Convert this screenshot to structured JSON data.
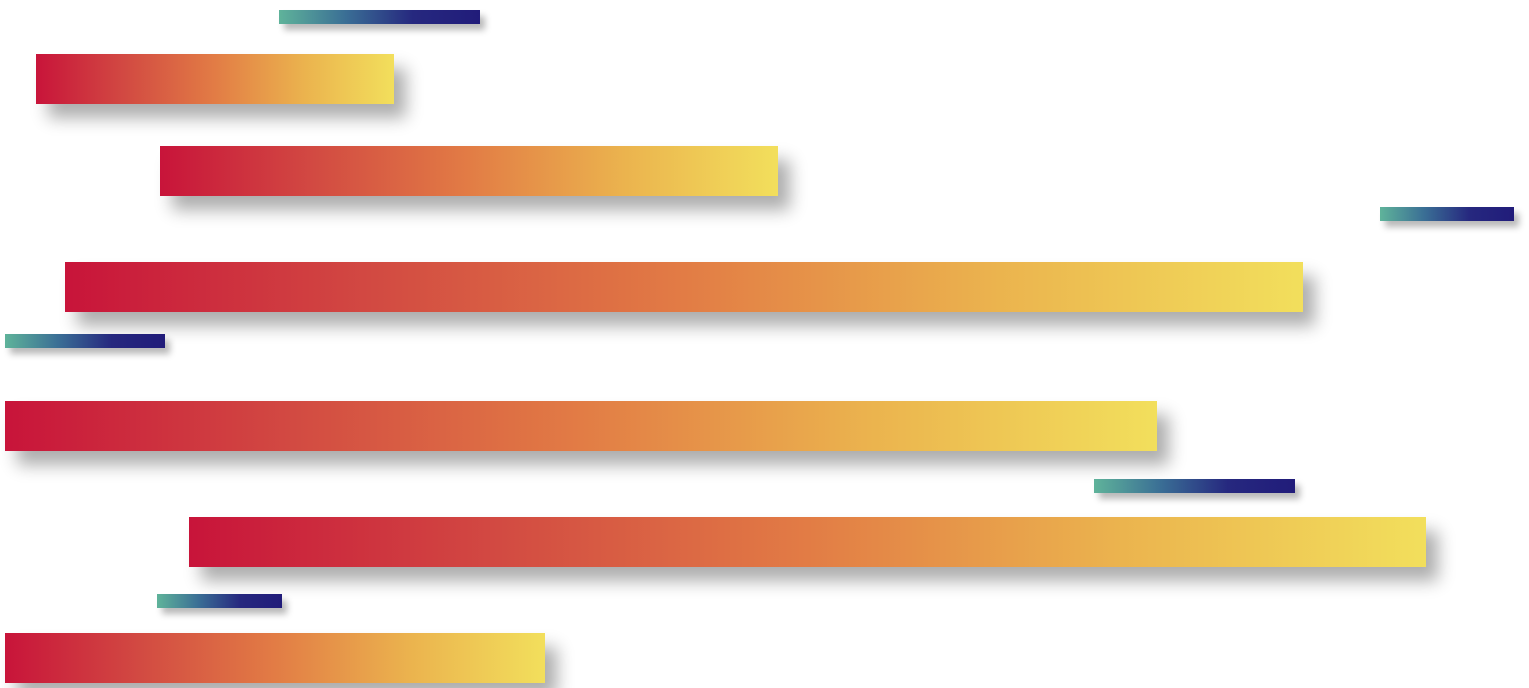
{
  "palette": {
    "background": "#ffffff",
    "warm_gradient": [
      "#c8143a",
      "#d24a42",
      "#e27c45",
      "#ebb34e",
      "#f2df5c"
    ],
    "cool_gradient": [
      "#5fb39a",
      "#3a6e95",
      "#26287f",
      "#211c7a"
    ]
  },
  "bars": [
    {
      "kind": "cool"
    },
    {
      "kind": "warm"
    },
    {
      "kind": "warm"
    },
    {
      "kind": "cool"
    },
    {
      "kind": "warm"
    },
    {
      "kind": "cool"
    },
    {
      "kind": "warm"
    },
    {
      "kind": "cool"
    },
    {
      "kind": "warm"
    },
    {
      "kind": "cool"
    },
    {
      "kind": "warm"
    }
  ]
}
